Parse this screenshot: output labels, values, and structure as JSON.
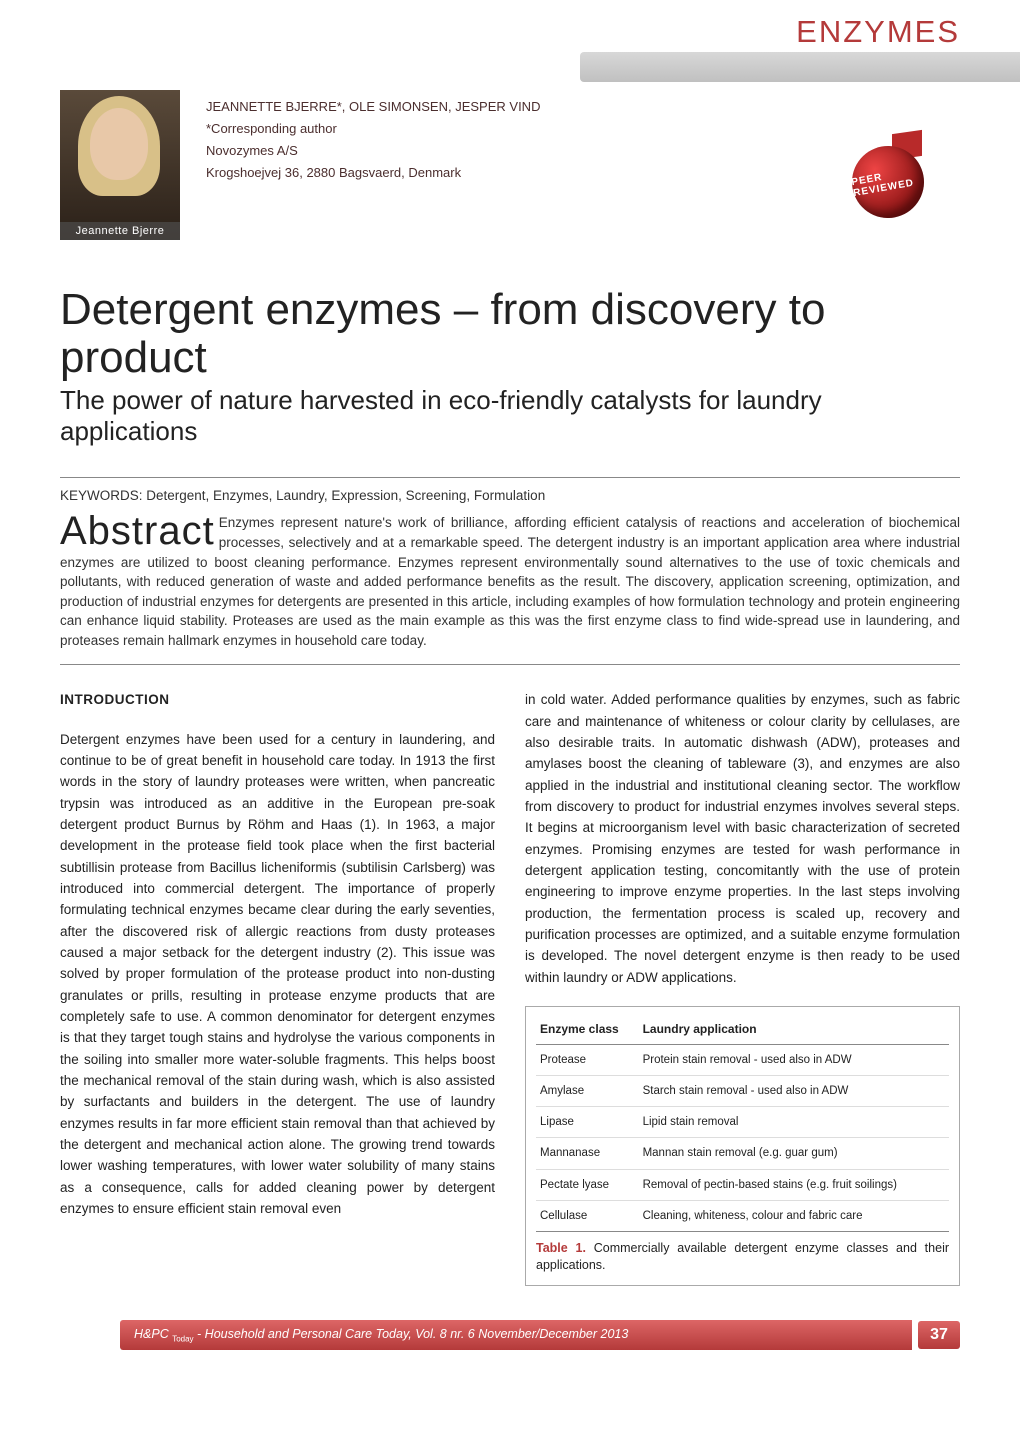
{
  "section_label": "ENZYMES",
  "portrait_caption": "Jeannette Bjerre",
  "authors_line": "JEANNETTE BJERRE*, OLE SIMONSEN, JESPER VIND",
  "corresponding": "*Corresponding author",
  "affiliation": "Novozymes A/S",
  "address": "Krogshoejvej 36, 2880 Bagsvaerd, Denmark",
  "seal_text": "PEER REVIEWED",
  "title": "Detergent enzymes – from discovery to product",
  "subtitle": "The power of nature harvested in eco-friendly catalysts for laundry applications",
  "keywords_line": "KEYWORDS: Detergent, Enzymes, Laundry, Expression, Screening, Formulation",
  "abstract_label": "Abstract",
  "abstract_text": "Enzymes represent nature's work of brilliance, affording efficient catalysis of reactions and acceleration of biochemical processes, selectively and at a remarkable speed. The detergent industry is an important application area where industrial enzymes are utilized to boost cleaning performance. Enzymes represent environmentally sound alternatives to the use of toxic chemicals and pollutants, with reduced generation of waste and added performance benefits as the result. The discovery, application screening, optimization, and production of industrial enzymes for detergents are presented in this article, including examples of how formulation technology and protein engineering can enhance liquid stability. Proteases are used as the main example as this was the first enzyme class to find wide-spread use in laundering, and proteases remain hallmark enzymes in household care today.",
  "intro_heading": "INTRODUCTION",
  "col1_text": "Detergent enzymes have been used for a century in laundering, and continue to be of great benefit in household care today. In 1913 the first words in the story of laundry proteases were written, when pancreatic trypsin was introduced as an additive in the European pre-soak detergent product Burnus by Röhm and Haas (1). In 1963, a major development in the protease field took place when the first bacterial subtillisin protease from Bacillus licheniformis (subtilisin Carlsberg) was introduced into commercial detergent. The importance of properly formulating technical enzymes became clear during the early seventies, after the discovered risk of allergic reactions from dusty proteases caused a major setback for the detergent industry (2). This issue was solved by proper formulation of the protease product into non-dusting granulates or prills, resulting in protease enzyme products that are completely safe to use. A common denominator for detergent enzymes is that they target tough stains and hydrolyse the various components in the soiling into smaller more water-soluble fragments. This helps boost the mechanical removal of the stain during wash, which is also assisted by surfactants and builders in the detergent. The use of laundry enzymes results in far more efficient stain removal than that achieved by the detergent and mechanical action alone. The growing trend towards lower washing temperatures, with lower water solubility of many stains as a consequence, calls for added cleaning power by detergent enzymes to ensure efficient stain removal even",
  "col2_text": "in cold water. Added performance qualities by enzymes, such as fabric care and maintenance of whiteness or colour clarity by cellulases, are also desirable traits. In automatic dishwash (ADW), proteases and amylases boost the cleaning of tableware (3), and enzymes are also applied in the industrial and institutional cleaning sector. The workflow from discovery to product for industrial enzymes involves several steps. It begins at microorganism level with basic characterization of secreted enzymes. Promising enzymes are tested for wash performance in detergent application testing, concomitantly with the use of protein engineering to improve enzyme properties. In the last steps involving production, the fermentation process is scaled up, recovery and purification processes are optimized, and a suitable enzyme formulation is developed. The novel detergent enzyme is then ready to be used within laundry or ADW applications.",
  "table": {
    "col_header_1": "Enzyme class",
    "col_header_2": "Laundry application",
    "rows": [
      {
        "c1": "Protease",
        "c2": "Protein stain removal - used also in ADW"
      },
      {
        "c1": "Amylase",
        "c2": "Starch stain removal - used also in ADW"
      },
      {
        "c1": "Lipase",
        "c2": "Lipid stain removal"
      },
      {
        "c1": "Mannanase",
        "c2": "Mannan stain removal (e.g. guar gum)"
      },
      {
        "c1": "Pectate lyase",
        "c2": "Removal of pectin-based stains (e.g. fruit soilings)"
      },
      {
        "c1": "Cellulase",
        "c2": "Cleaning, whiteness, colour and fabric care"
      }
    ],
    "caption_bold": "Table 1.",
    "caption_rest": " Commercially available detergent enzyme classes and their applications."
  },
  "footer": {
    "journal_html": "H&PC ",
    "journal_sub": "Today",
    "journal_rest": " - Household and Personal Care Today, ",
    "issue": "Vol. 8 nr. 6 November/December 2013",
    "page_number": "37"
  },
  "colors": {
    "brand_red": "#b43a3a",
    "band_grey": "#cfcfcf"
  }
}
